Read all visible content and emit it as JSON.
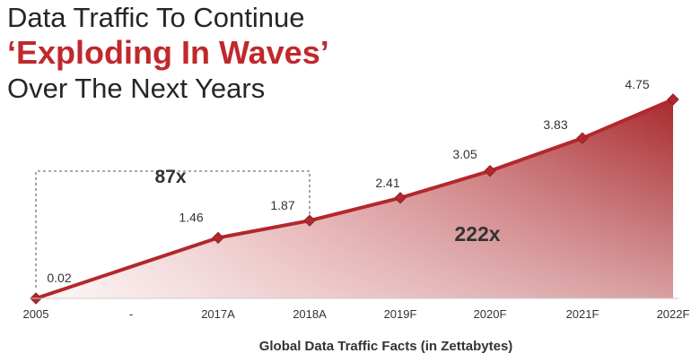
{
  "title": {
    "line1": "Data Traffic To Continue",
    "line2": "‘Exploding In Waves’",
    "line3": "Over The Next Years"
  },
  "chart_data": {
    "type": "area",
    "categories": [
      "2005",
      "-",
      "2017A",
      "2018A",
      "2019F",
      "2020F",
      "2021F",
      "2022F"
    ],
    "values": [
      0.02,
      null,
      1.46,
      1.87,
      2.41,
      3.05,
      3.83,
      4.75
    ],
    "value_labels": [
      "0.02",
      "",
      "1.46",
      "1.87",
      "2.41",
      "3.05",
      "3.83",
      "4.75"
    ],
    "xlabel": "Global Data Traffic Facts (in Zettabytes)",
    "ylim": [
      0,
      5
    ],
    "grid": false,
    "legend": "none",
    "annotations": [
      {
        "text": "87x",
        "from": "2005",
        "to": "2018A",
        "style": "dashed-bracket"
      },
      {
        "text": "222x",
        "style": "inside-area"
      }
    ],
    "colors": {
      "line": "#b3282d",
      "area_dark": "#a82a2e",
      "area_light": "#fbecec",
      "marker": "#b3282d",
      "text": "#333333"
    }
  }
}
